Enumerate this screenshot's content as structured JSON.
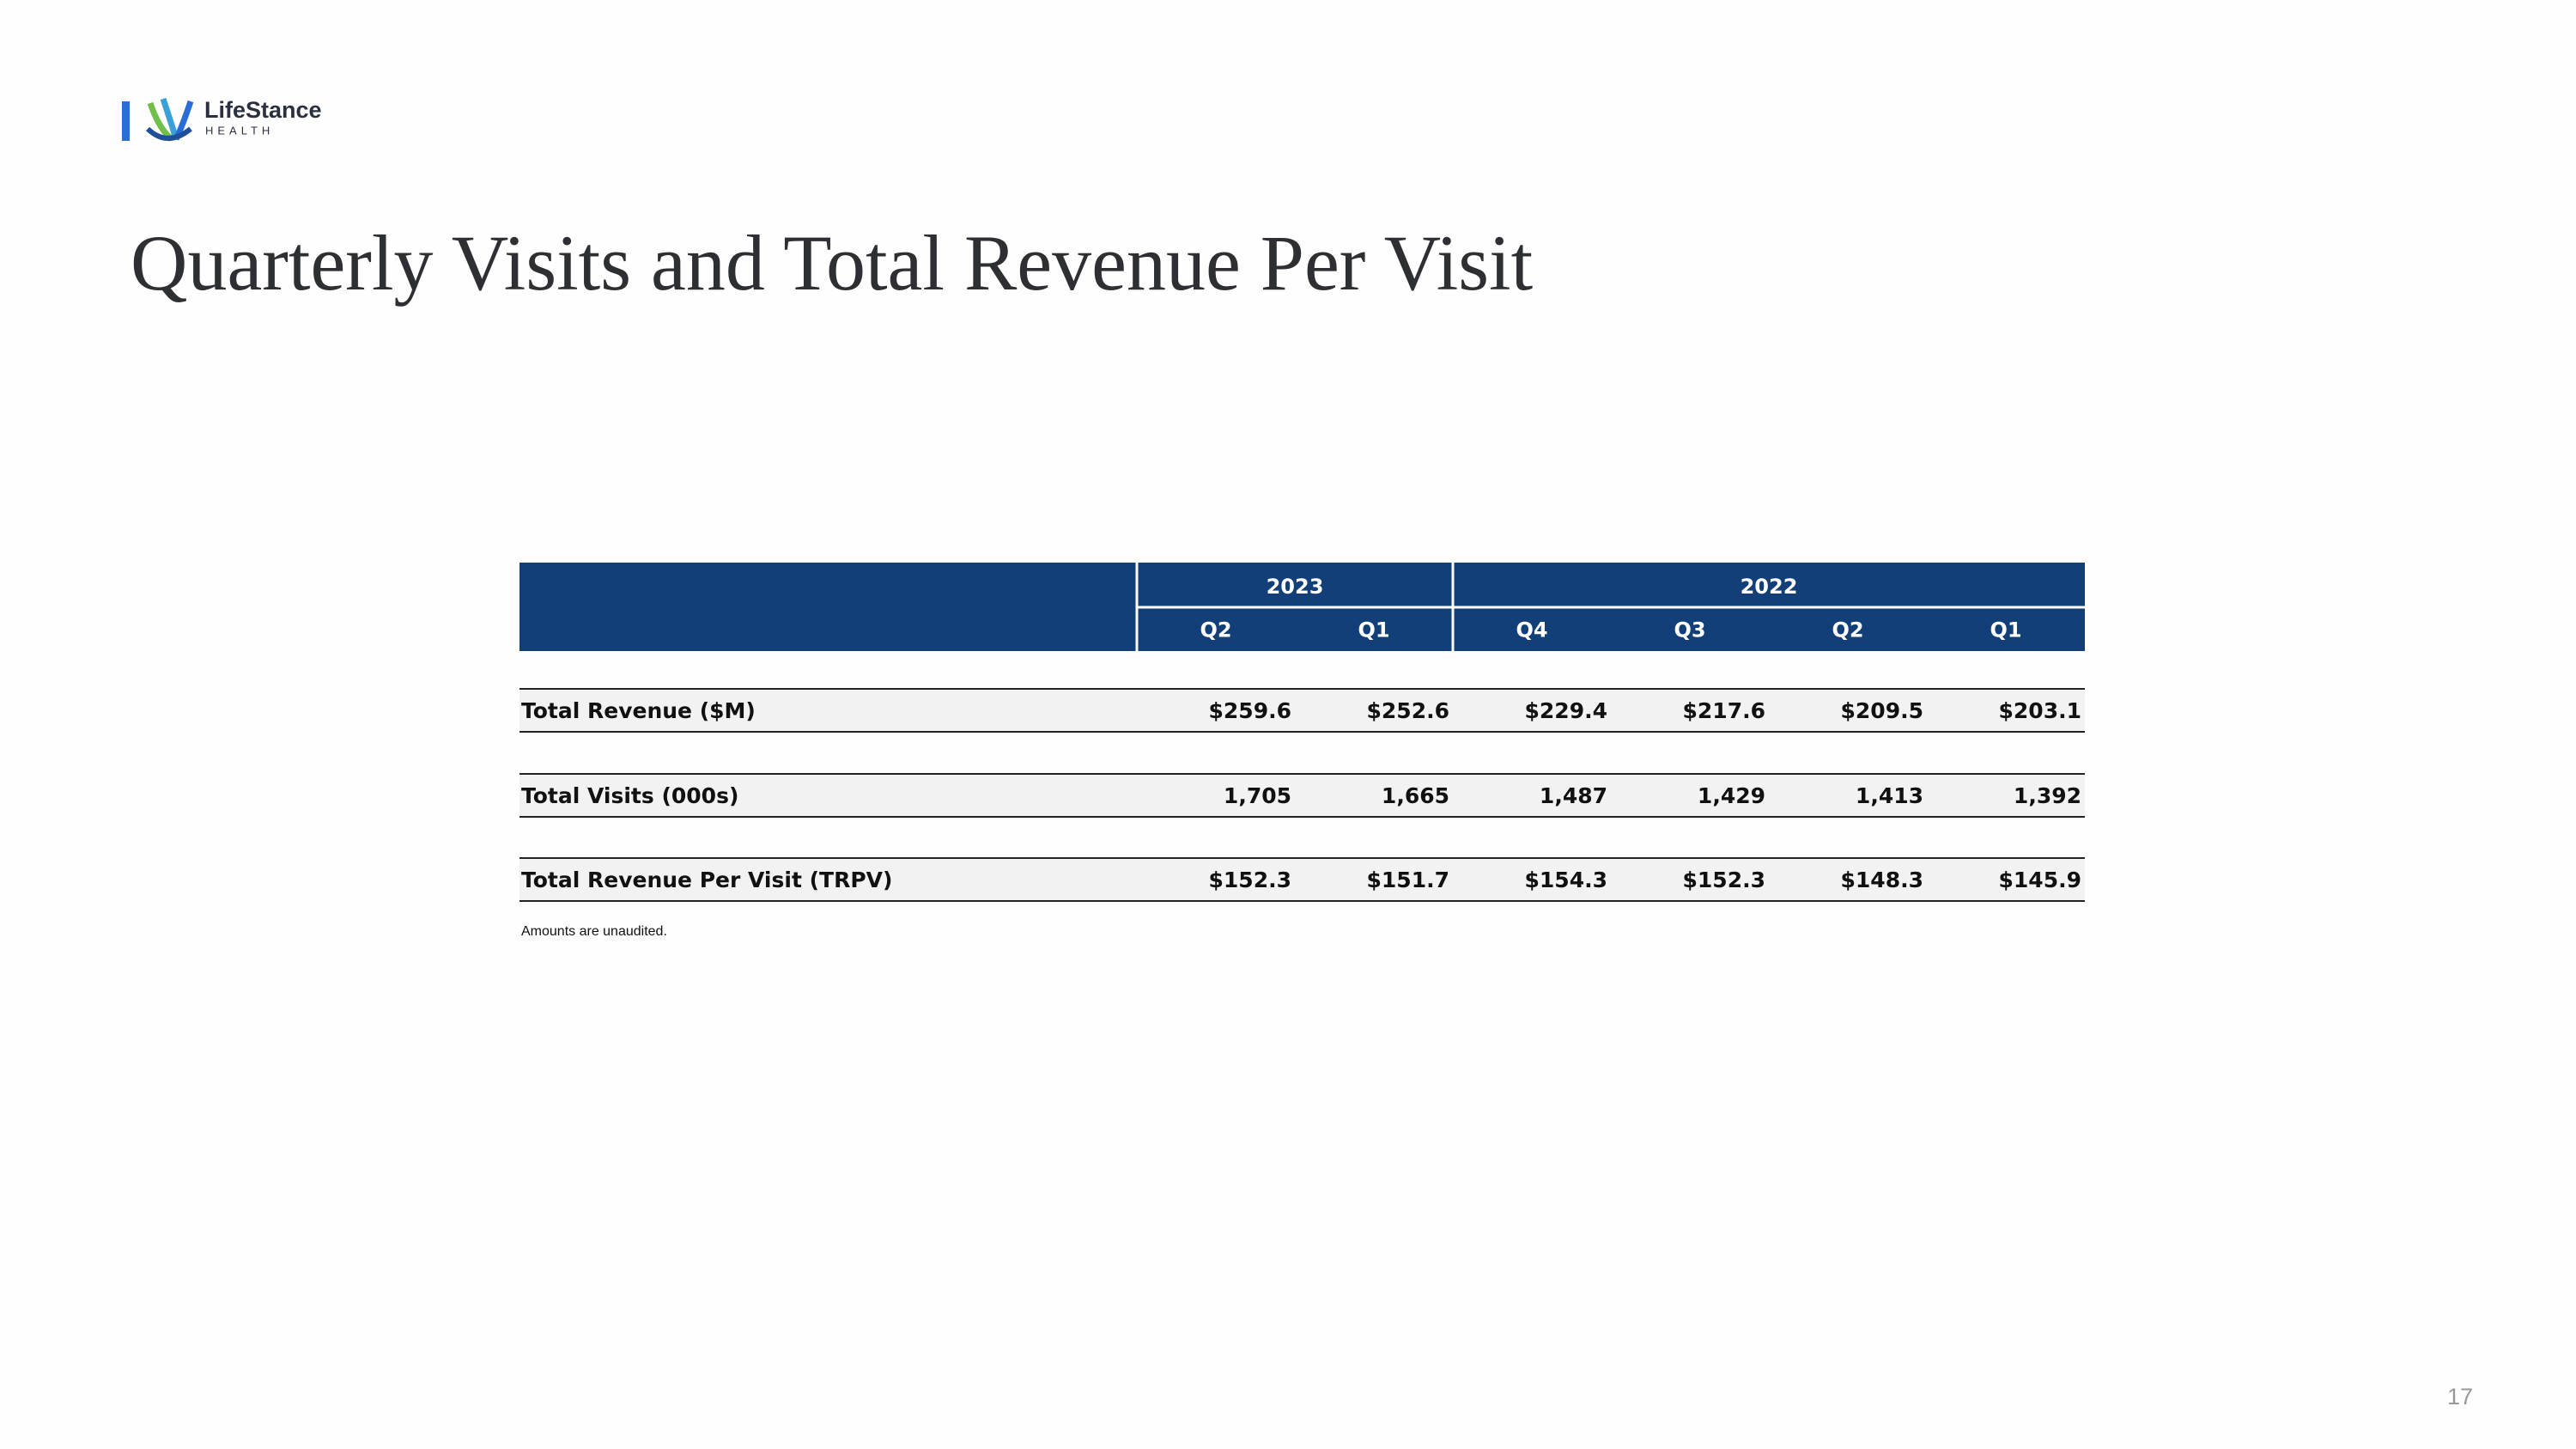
{
  "logo": {
    "name": "LifeStance",
    "sub": "HEALTH"
  },
  "title": "Quarterly Visits and Total Revenue Per Visit",
  "table": {
    "groups": [
      {
        "label": "2023",
        "columns": [
          "Q2",
          "Q1"
        ]
      },
      {
        "label": "2022",
        "columns": [
          "Q4",
          "Q3",
          "Q2",
          "Q1"
        ]
      }
    ],
    "rows": [
      {
        "label": "Total Revenue ($M)",
        "values": [
          "$259.6",
          "$252.6",
          "$229.4",
          "$217.6",
          "$209.5",
          "$203.1"
        ]
      },
      {
        "label": "Total Visits (000s)",
        "values": [
          "1,705",
          "1,665",
          "1,487",
          "1,429",
          "1,413",
          "1,392"
        ]
      },
      {
        "label": "Total Revenue Per Visit (TRPV)",
        "values": [
          "$152.3",
          "$151.7",
          "$154.3",
          "$152.3",
          "$148.3",
          "$145.9"
        ]
      }
    ],
    "footnote": "Amounts are unaudited."
  },
  "page_number": "17"
}
